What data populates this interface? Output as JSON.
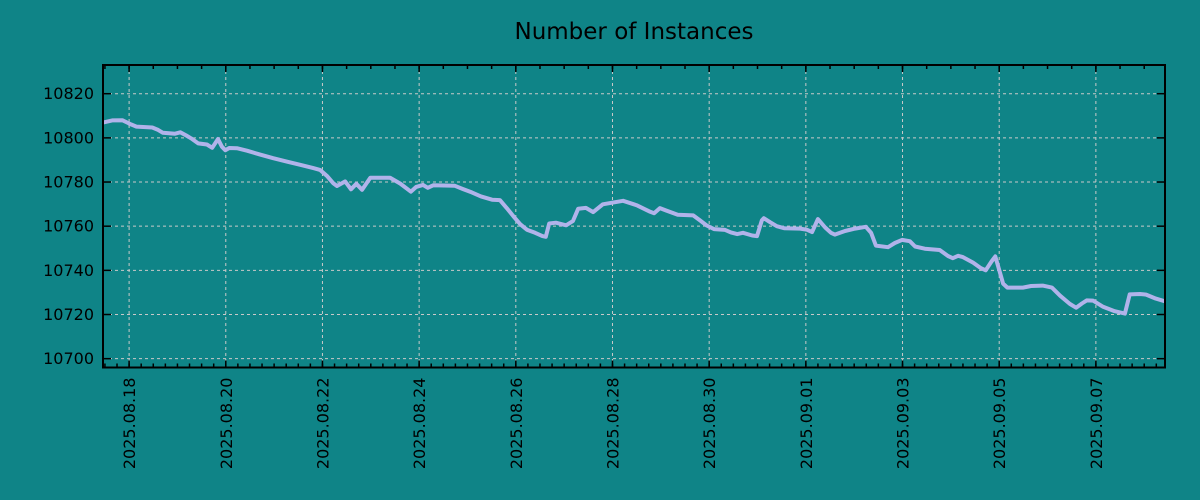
{
  "title": "Number of Instances",
  "colors": {
    "background": "#0f8487",
    "line": "#b1b3ea",
    "grid": "#c9c9c9",
    "axis": "#000000",
    "text": "#000000"
  },
  "chart_data": {
    "type": "line",
    "title": "Number of Instances",
    "xlabel": "",
    "ylabel": "",
    "legend": false,
    "grid": "dashed at major ticks",
    "x_axis": {
      "unit": "days since 2025-08-17 00:00",
      "range": [
        0.46,
        22.43
      ],
      "minor_tick_step_bottom": 0.25,
      "minor_tick_step_top": 0.5,
      "major_ticks": [
        {
          "d": 1,
          "label": "2025.08.18"
        },
        {
          "d": 3,
          "label": "2025.08.20"
        },
        {
          "d": 5,
          "label": "2025.08.22"
        },
        {
          "d": 7,
          "label": "2025.08.24"
        },
        {
          "d": 9,
          "label": "2025.08.26"
        },
        {
          "d": 11,
          "label": "2025.08.28"
        },
        {
          "d": 13,
          "label": "2025.08.30"
        },
        {
          "d": 15,
          "label": "2025.09.01"
        },
        {
          "d": 17,
          "label": "2025.09.03"
        },
        {
          "d": 19,
          "label": "2025.09.05"
        },
        {
          "d": 21,
          "label": "2025.09.07"
        }
      ]
    },
    "y_axis": {
      "range": [
        10696,
        10833
      ],
      "ticks": [
        10700,
        10720,
        10740,
        10760,
        10780,
        10800,
        10820
      ]
    },
    "series": [
      {
        "name": "instances",
        "color": "#b1b3ea",
        "points": [
          [
            0.46,
            10806.9
          ],
          [
            0.65,
            10807.9
          ],
          [
            0.86,
            10808.0
          ],
          [
            1.04,
            10806.1
          ],
          [
            1.15,
            10805.1
          ],
          [
            1.48,
            10804.7
          ],
          [
            1.6,
            10803.6
          ],
          [
            1.7,
            10802.3
          ],
          [
            1.95,
            10801.9
          ],
          [
            2.06,
            10802.5
          ],
          [
            2.18,
            10801.1
          ],
          [
            2.28,
            10799.8
          ],
          [
            2.43,
            10797.5
          ],
          [
            2.61,
            10797.0
          ],
          [
            2.72,
            10795.5
          ],
          [
            2.84,
            10799.5
          ],
          [
            2.92,
            10796.0
          ],
          [
            2.99,
            10794.4
          ],
          [
            3.07,
            10795.4
          ],
          [
            3.23,
            10795.3
          ],
          [
            3.44,
            10794.2
          ],
          [
            3.71,
            10792.4
          ],
          [
            3.98,
            10790.8
          ],
          [
            4.27,
            10789.2
          ],
          [
            4.54,
            10787.8
          ],
          [
            4.81,
            10786.3
          ],
          [
            4.95,
            10785.5
          ],
          [
            5.1,
            10782.6
          ],
          [
            5.22,
            10779.5
          ],
          [
            5.3,
            10778.2
          ],
          [
            5.47,
            10780.3
          ],
          [
            5.59,
            10776.7
          ],
          [
            5.7,
            10779.2
          ],
          [
            5.82,
            10776.5
          ],
          [
            5.99,
            10781.9
          ],
          [
            6.4,
            10781.9
          ],
          [
            6.61,
            10779.3
          ],
          [
            6.83,
            10775.6
          ],
          [
            6.94,
            10777.8
          ],
          [
            7.08,
            10778.7
          ],
          [
            7.18,
            10777.4
          ],
          [
            7.29,
            10778.5
          ],
          [
            7.74,
            10778.3
          ],
          [
            7.91,
            10776.8
          ],
          [
            8.09,
            10775.3
          ],
          [
            8.28,
            10773.5
          ],
          [
            8.51,
            10772.0
          ],
          [
            8.67,
            10771.8
          ],
          [
            8.81,
            10768.3
          ],
          [
            8.95,
            10764.5
          ],
          [
            9.09,
            10760.9
          ],
          [
            9.23,
            10758.4
          ],
          [
            9.4,
            10757.0
          ],
          [
            9.55,
            10755.5
          ],
          [
            9.62,
            10755.2
          ],
          [
            9.69,
            10761.2
          ],
          [
            9.83,
            10761.6
          ],
          [
            10.04,
            10760.4
          ],
          [
            10.18,
            10762.3
          ],
          [
            10.29,
            10767.9
          ],
          [
            10.45,
            10768.3
          ],
          [
            10.6,
            10766.4
          ],
          [
            10.8,
            10769.9
          ],
          [
            11.22,
            10771.5
          ],
          [
            11.51,
            10769.4
          ],
          [
            11.78,
            10766.5
          ],
          [
            11.86,
            10765.9
          ],
          [
            11.98,
            10768.2
          ],
          [
            12.11,
            10767.1
          ],
          [
            12.35,
            10765.2
          ],
          [
            12.67,
            10764.9
          ],
          [
            12.81,
            10762.6
          ],
          [
            12.95,
            10760.3
          ],
          [
            13.1,
            10758.7
          ],
          [
            13.33,
            10758.3
          ],
          [
            13.45,
            10757.2
          ],
          [
            13.58,
            10756.4
          ],
          [
            13.7,
            10757.0
          ],
          [
            13.89,
            10755.8
          ],
          [
            13.99,
            10755.5
          ],
          [
            14.09,
            10762.7
          ],
          [
            14.13,
            10763.6
          ],
          [
            14.26,
            10761.8
          ],
          [
            14.4,
            10760.0
          ],
          [
            14.55,
            10759.1
          ],
          [
            14.88,
            10758.9
          ],
          [
            15.02,
            10758.4
          ],
          [
            15.13,
            10757.3
          ],
          [
            15.25,
            10763.2
          ],
          [
            15.4,
            10759.4
          ],
          [
            15.52,
            10757.0
          ],
          [
            15.6,
            10756.2
          ],
          [
            15.81,
            10757.8
          ],
          [
            16.02,
            10758.9
          ],
          [
            16.24,
            10759.7
          ],
          [
            16.35,
            10757.0
          ],
          [
            16.45,
            10751.2
          ],
          [
            16.7,
            10750.5
          ],
          [
            16.84,
            10752.4
          ],
          [
            16.99,
            10753.8
          ],
          [
            17.15,
            10753.2
          ],
          [
            17.26,
            10750.8
          ],
          [
            17.46,
            10749.8
          ],
          [
            17.77,
            10749.2
          ],
          [
            17.94,
            10746.5
          ],
          [
            18.04,
            10745.5
          ],
          [
            18.15,
            10746.6
          ],
          [
            18.25,
            10746.0
          ],
          [
            18.46,
            10743.5
          ],
          [
            18.62,
            10741.0
          ],
          [
            18.72,
            10740.0
          ],
          [
            18.84,
            10744.0
          ],
          [
            18.92,
            10746.3
          ],
          [
            19.0,
            10740.2
          ],
          [
            19.08,
            10734.0
          ],
          [
            19.17,
            10732.2
          ],
          [
            19.49,
            10732.2
          ],
          [
            19.66,
            10732.9
          ],
          [
            19.9,
            10733.1
          ],
          [
            20.09,
            10732.2
          ],
          [
            20.26,
            10728.5
          ],
          [
            20.46,
            10724.8
          ],
          [
            20.59,
            10723.1
          ],
          [
            20.71,
            10725.0
          ],
          [
            20.81,
            10726.4
          ],
          [
            20.94,
            10726.3
          ],
          [
            21.15,
            10723.5
          ],
          [
            21.39,
            10721.5
          ],
          [
            21.6,
            10720.4
          ],
          [
            21.7,
            10729.1
          ],
          [
            21.91,
            10729.3
          ],
          [
            22.04,
            10729.0
          ],
          [
            22.24,
            10727.2
          ],
          [
            22.43,
            10726.0
          ]
        ]
      }
    ]
  }
}
